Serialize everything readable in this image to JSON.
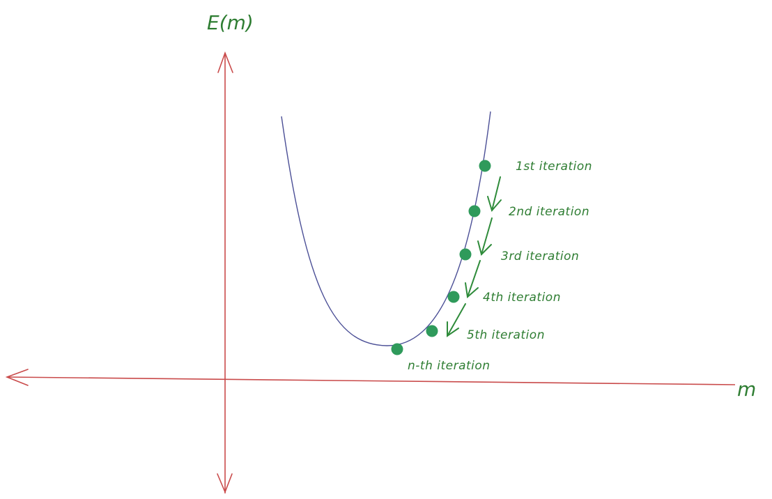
{
  "colors": {
    "axis": "#c94a4a",
    "curve": "#4b4f96",
    "points": "#2f9a5b",
    "arrows": "#2e8b3a",
    "text": "#2e7d32"
  },
  "axes": {
    "y_label": "E(m)",
    "x_label": "m"
  },
  "iterations": [
    {
      "label": "1st iteration"
    },
    {
      "label": "2nd iteration"
    },
    {
      "label": "3rd iteration"
    },
    {
      "label": "4th iteration"
    },
    {
      "label": "5th iteration"
    },
    {
      "label": "n-th iteration"
    }
  ]
}
